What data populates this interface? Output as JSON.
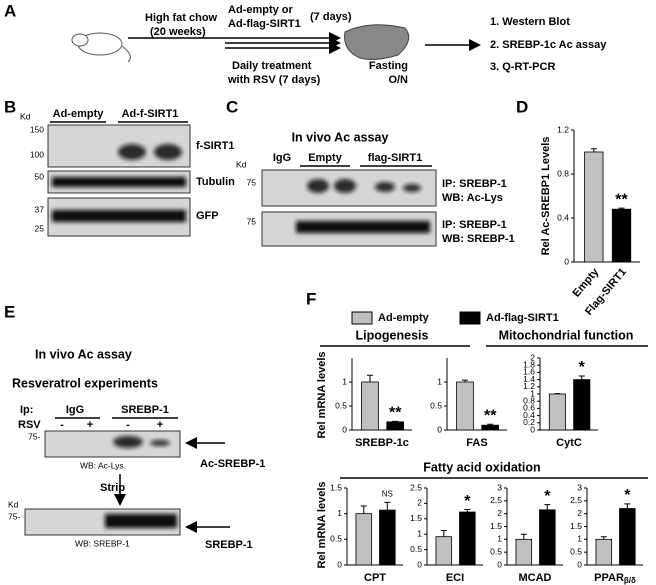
{
  "panel_labels": [
    "A",
    "B",
    "C",
    "D",
    "E",
    "F"
  ],
  "panel_a": {
    "treatment1": [
      "High fat chow",
      "(20 weeks)"
    ],
    "treatment2": [
      "Ad-empty or",
      "Ad-flag-SIRT1"
    ],
    "duration": "(7 days)",
    "treatment3": [
      "Daily treatment",
      "with RSV (7 days)"
    ],
    "fasting": [
      "Fasting",
      "O/N"
    ],
    "assays": [
      "1. Western Blot",
      "2. SREBP-1c Ac assay",
      "3. Q-RT-PCR"
    ]
  },
  "panel_b": {
    "kd": "Kd",
    "groups": [
      "Ad-empty",
      "Ad-f-SIRT1"
    ],
    "markers": [
      "150",
      "100",
      "50",
      "37",
      "25"
    ],
    "blots": [
      "f-SIRT1",
      "Tubulin",
      "GFP"
    ]
  },
  "panel_c": {
    "title": "In vivo Ac assay",
    "kd": "Kd",
    "groups": [
      "IgG",
      "Empty",
      "flag-SIRT1"
    ],
    "markers": [
      "75",
      "75"
    ],
    "blots": [
      [
        "IP: SREBP-1",
        "WB: Ac-Lys"
      ],
      [
        "IP: SREBP-1",
        "WB: SREBP-1"
      ]
    ]
  },
  "panel_e": {
    "title": "In vivo Ac assay",
    "subtitle": "Resveratrol experiments",
    "ip": "Ip:",
    "groups": [
      "IgG",
      "SREBP-1"
    ],
    "rsv": "RSV",
    "signs": [
      "-",
      "+",
      "-",
      "+"
    ],
    "kd": "Kd",
    "markers": [
      "75-",
      "75-"
    ],
    "blots": [
      "WB: Ac-Lys",
      "WB: SREBP-1"
    ],
    "bands": [
      "Ac-SREBP-1",
      "SREBP-1"
    ],
    "strip": "Strip"
  },
  "panel_f": {
    "legend": [
      {
        "name": "Ad-empty",
        "color": "#c0c0c0"
      },
      {
        "name": "Ad-flag-SIRT1",
        "color": "#000000"
      }
    ],
    "groups": [
      "Lipogenesis",
      "Mitochondrial function",
      "Fatty acid oxidation"
    ],
    "y_label": "Rel mRNA levels"
  },
  "chart_data": [
    {
      "type": "bar",
      "y_label": "Rel Ac-SREBP1 Levels",
      "categories": [
        "Empty",
        "Flag-SIRT1"
      ],
      "values": [
        1.0,
        0.48
      ],
      "errors": [
        0.03,
        0.01
      ],
      "colors": [
        "#c0c0c0",
        "#000000"
      ],
      "ylim": [
        0,
        1.2
      ],
      "yticks": [
        0,
        0.4,
        0.8,
        1.2
      ],
      "annotation": "**"
    },
    {
      "type": "bar",
      "x_label": "SREBP-1c",
      "values": [
        1.0,
        0.17
      ],
      "errors": [
        0.14,
        0.01
      ],
      "colors": [
        "#c0c0c0",
        "#000000"
      ],
      "ylim": [
        0,
        1.5
      ],
      "yticks": [
        0,
        0.5,
        1
      ],
      "annotation": "**"
    },
    {
      "type": "bar",
      "x_label": "FAS",
      "values": [
        1.0,
        0.1
      ],
      "errors": [
        0.04,
        0.02
      ],
      "colors": [
        "#c0c0c0",
        "#000000"
      ],
      "ylim": [
        0,
        1.5
      ],
      "yticks": [
        0,
        0.5,
        1
      ],
      "annotation": "**"
    },
    {
      "type": "bar",
      "x_label": "CytC",
      "values": [
        1.0,
        1.4
      ],
      "errors": [
        0.01,
        0.1
      ],
      "colors": [
        "#c0c0c0",
        "#000000"
      ],
      "ylim": [
        0,
        2
      ],
      "yticks": [
        0,
        0.2,
        0.4,
        0.6,
        0.8,
        1,
        1.2,
        1.4,
        1.6,
        1.8,
        2
      ],
      "annotation": "*"
    },
    {
      "type": "bar",
      "x_label": "CPT",
      "values": [
        1.0,
        1.07
      ],
      "errors": [
        0.15,
        0.15
      ],
      "colors": [
        "#c0c0c0",
        "#000000"
      ],
      "ylim": [
        0,
        1.5
      ],
      "yticks": [
        0,
        0.5,
        1,
        1.5
      ],
      "annotation": "NS"
    },
    {
      "type": "bar",
      "x_label": "ECI",
      "values": [
        0.92,
        1.72
      ],
      "errors": [
        0.2,
        0.08
      ],
      "colors": [
        "#c0c0c0",
        "#000000"
      ],
      "ylim": [
        0,
        2.5
      ],
      "yticks": [
        0,
        0.5,
        1,
        1.5,
        2,
        2.5
      ],
      "annotation": "*"
    },
    {
      "type": "bar",
      "x_label": "MCAD",
      "values": [
        1.0,
        2.15
      ],
      "errors": [
        0.2,
        0.2
      ],
      "colors": [
        "#c0c0c0",
        "#000000"
      ],
      "ylim": [
        0,
        3
      ],
      "yticks": [
        0,
        0.5,
        1,
        1.5,
        2,
        2.5,
        3
      ],
      "annotation": "*"
    },
    {
      "type": "bar",
      "x_label": "PPAR",
      "x_label_sub": "β/δ",
      "values": [
        1.0,
        2.2
      ],
      "errors": [
        0.1,
        0.18
      ],
      "colors": [
        "#c0c0c0",
        "#000000"
      ],
      "ylim": [
        0,
        3
      ],
      "yticks": [
        0,
        0.5,
        1,
        1.5,
        2,
        2.5,
        3
      ],
      "annotation": "*"
    }
  ]
}
